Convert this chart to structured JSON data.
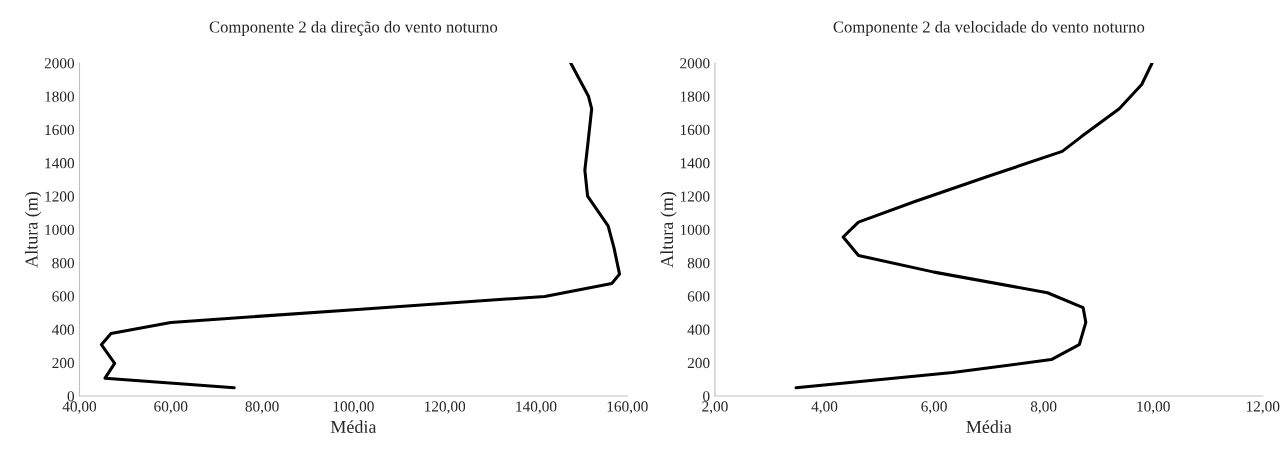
{
  "chart_data": [
    {
      "type": "line",
      "title": "Componente 2 da direção do vento noturno",
      "xlabel": "Média",
      "ylabel": "Altura (m)",
      "grid": false,
      "legend": false,
      "xlim": [
        40,
        160
      ],
      "xticks": [
        {
          "value": 40,
          "label": "40,00"
        },
        {
          "value": 60,
          "label": "60,00"
        },
        {
          "value": 80,
          "label": "80,00"
        },
        {
          "value": 100,
          "label": "100,00"
        },
        {
          "value": 120,
          "label": "120,00"
        },
        {
          "value": 140,
          "label": "140,00"
        },
        {
          "value": 160,
          "label": "160,00"
        }
      ],
      "ylim": [
        0,
        2000
      ],
      "yticks": [
        0,
        200,
        400,
        600,
        800,
        1000,
        1200,
        1400,
        1600,
        1800,
        2000
      ],
      "series": [
        {
          "color": "#000000",
          "x": [
            147.6,
            151.5,
            152.2,
            151.3,
            150.7,
            151.3,
            155.8,
            157.1,
            158.3,
            156.6,
            141.9,
            100.9,
            60.0,
            46.9,
            44.8,
            47.7,
            45.6,
            73.9
          ],
          "values": [
            2000,
            1800,
            1725,
            1500,
            1357,
            1200,
            1022,
            888,
            732,
            676,
            598,
            520,
            442,
            375,
            308,
            196,
            107,
            50
          ]
        }
      ]
    },
    {
      "type": "line",
      "title": "Componente 2 da velocidade do vento noturno",
      "xlabel": "Média",
      "ylabel": "Altura (m)",
      "grid": false,
      "legend": false,
      "xlim": [
        2,
        12
      ],
      "xticks": [
        {
          "value": 2,
          "label": "2,00"
        },
        {
          "value": 4,
          "label": "4,00"
        },
        {
          "value": 6,
          "label": "6,00"
        },
        {
          "value": 8,
          "label": "8,00"
        },
        {
          "value": 10,
          "label": "10,00"
        },
        {
          "value": 12,
          "label": "12,00"
        }
      ],
      "ylim": [
        0,
        2000
      ],
      "yticks": [
        0,
        200,
        400,
        600,
        800,
        1000,
        1200,
        1400,
        1600,
        1800,
        2000
      ],
      "series": [
        {
          "color": "#000000",
          "x": [
            9.98,
            9.79,
            9.38,
            8.69,
            8.34,
            7.03,
            5.65,
            4.62,
            4.34,
            4.62,
            6.0,
            8.07,
            8.72,
            8.77,
            8.65,
            8.14,
            6.34,
            3.48
          ],
          "values": [
            2000,
            1871,
            1725,
            1558,
            1469,
            1324,
            1168,
            1044,
            955,
            844,
            744,
            620,
            531,
            442,
            308,
            219,
            141,
            50
          ]
        }
      ]
    }
  ]
}
